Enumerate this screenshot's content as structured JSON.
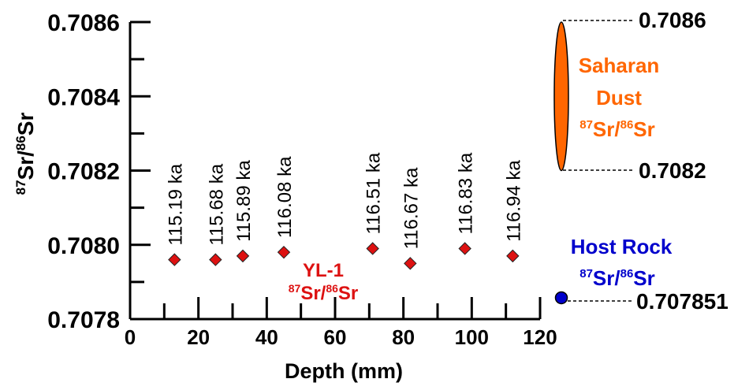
{
  "chart_data": {
    "type": "scatter",
    "xlabel": "Depth (mm)",
    "ylabel_parts": [
      "87",
      "Sr/",
      "86",
      "Sr"
    ],
    "xlim": [
      0,
      120
    ],
    "ylim": [
      0.7078,
      0.7086
    ],
    "x_ticks": [
      0,
      20,
      40,
      60,
      80,
      100,
      120
    ],
    "y_ticks": [
      "0.7078",
      "0.7080",
      "0.7082",
      "0.7084",
      "0.7086"
    ],
    "series": [
      {
        "name_parts": [
          "YL-1",
          "87",
          "Sr/",
          "86",
          "Sr"
        ],
        "color": "#dd1111",
        "marker": "diamond",
        "points": [
          {
            "x": 13,
            "y": 0.70796,
            "label": "115.19 ka"
          },
          {
            "x": 25,
            "y": 0.70796,
            "label": "115.68 ka"
          },
          {
            "x": 33,
            "y": 0.70797,
            "label": "115.89 ka"
          },
          {
            "x": 45,
            "y": 0.70798,
            "label": "116.08 ka"
          },
          {
            "x": 71,
            "y": 0.70799,
            "label": "116.51 ka"
          },
          {
            "x": 82,
            "y": 0.70795,
            "label": "116.67 ka"
          },
          {
            "x": 98,
            "y": 0.70799,
            "label": "116.83 ka"
          },
          {
            "x": 112,
            "y": 0.70797,
            "label": "116.94 ka"
          }
        ]
      }
    ],
    "saharan_dust": {
      "label_parts": [
        "Saharan",
        "Dust",
        "87",
        "Sr/",
        "86",
        "Sr"
      ],
      "min": 0.7082,
      "max": 0.7086,
      "min_label": "0.7082",
      "max_label": "0.7086",
      "color": "#ff6600"
    },
    "host_rock": {
      "label_parts": [
        "Host Rock",
        "87",
        "Sr/",
        "86",
        "Sr"
      ],
      "value": 0.707851,
      "value_label": "0.707851",
      "color": "#0000cc"
    }
  }
}
